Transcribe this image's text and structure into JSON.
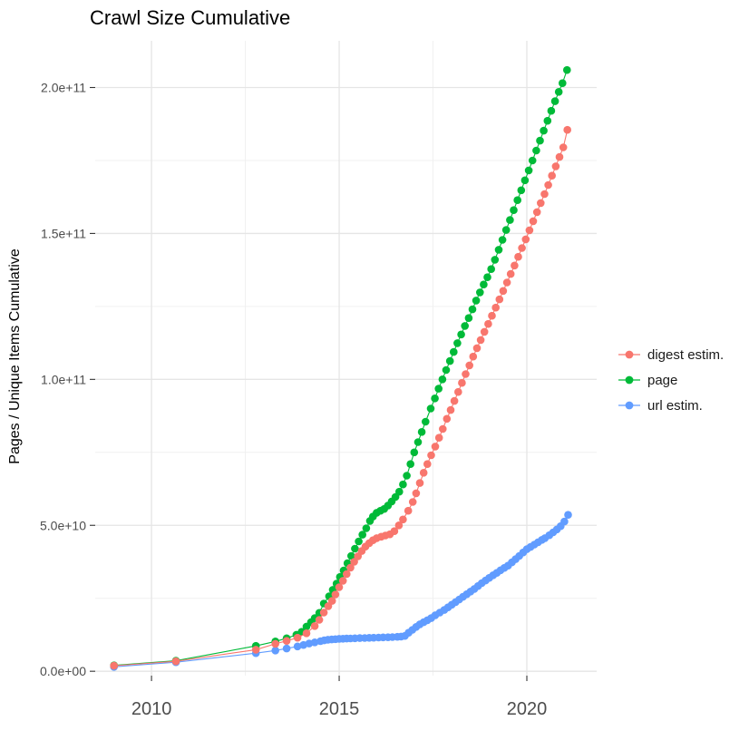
{
  "title": "Crawl Size Cumulative",
  "colors": {
    "background": "#FFFFFF",
    "title_text": "#000000",
    "axis_text": "#4D4D4D",
    "tick_mark": "#333333",
    "grid_major": "#E5E5E5",
    "grid_minor": "#F0F0F0",
    "series_digest": "#F8766D",
    "series_page": "#00BA38",
    "series_url": "#619CFF"
  },
  "chart_data": {
    "type": "scatter",
    "title": "Crawl Size Cumulative",
    "xlabel": "",
    "ylabel": "Pages / Unique Items Cumulative",
    "legend_position": "right",
    "grid": true,
    "x_ticks": [
      2010,
      2015,
      2020
    ],
    "x_tick_labels": [
      "2010",
      "2015",
      "2020"
    ],
    "x_minor_ticks": [
      2012.5,
      2017.5
    ],
    "y_unit": 1000000000,
    "y_ticks_billions": [
      0,
      50,
      100,
      150,
      200
    ],
    "y_tick_labels": [
      "0.0e+00",
      "5.0e+10",
      "1.0e+11",
      "1.5e+11",
      "2.0e+11"
    ],
    "y_minor_ticks_billions": [
      25,
      75,
      125,
      175
    ],
    "xlim": [
      2008.5,
      2021.86
    ],
    "ylim_billions": [
      -1.5,
      216
    ],
    "point_format": "[year, cumulative_value_in_billions]",
    "series": [
      {
        "name": "digest estim.",
        "color": "#F8766D",
        "points": [
          [
            2009.0,
            1.9
          ],
          [
            2010.65,
            3.4
          ],
          [
            2012.78,
            7.4
          ],
          [
            2013.3,
            9.4
          ],
          [
            2013.6,
            10.4
          ],
          [
            2013.89,
            11.5
          ],
          [
            2014.13,
            13.0
          ],
          [
            2014.35,
            15.5
          ],
          [
            2014.47,
            17.6
          ],
          [
            2014.59,
            20.1
          ],
          [
            2014.71,
            22.3
          ],
          [
            2014.81,
            24.1
          ],
          [
            2014.9,
            26.3
          ],
          [
            2015.0,
            28.8
          ],
          [
            2015.1,
            31.0
          ],
          [
            2015.2,
            33.3
          ],
          [
            2015.3,
            35.5
          ],
          [
            2015.4,
            37.5
          ],
          [
            2015.5,
            39.4
          ],
          [
            2015.6,
            41.2
          ],
          [
            2015.7,
            42.7
          ],
          [
            2015.8,
            43.9
          ],
          [
            2015.9,
            44.9
          ],
          [
            2016.0,
            45.6
          ],
          [
            2016.12,
            46.1
          ],
          [
            2016.23,
            46.5
          ],
          [
            2016.35,
            46.9
          ],
          [
            2016.47,
            48.0
          ],
          [
            2016.59,
            50.0
          ],
          [
            2016.7,
            52.0
          ],
          [
            2016.84,
            55.0
          ],
          [
            2016.96,
            58.0
          ],
          [
            2017.05,
            61.0
          ],
          [
            2017.15,
            64.5
          ],
          [
            2017.25,
            68.0
          ],
          [
            2017.35,
            71.0
          ],
          [
            2017.45,
            74.0
          ],
          [
            2017.56,
            77.0
          ],
          [
            2017.66,
            80.0
          ],
          [
            2017.76,
            83.0
          ],
          [
            2017.87,
            86.5
          ],
          [
            2017.97,
            89.5
          ],
          [
            2018.07,
            92.6
          ],
          [
            2018.17,
            95.7
          ],
          [
            2018.27,
            98.8
          ],
          [
            2018.37,
            101.8
          ],
          [
            2018.47,
            104.8
          ],
          [
            2018.57,
            107.8
          ],
          [
            2018.67,
            110.7
          ],
          [
            2018.77,
            113.5
          ],
          [
            2018.87,
            116.3
          ],
          [
            2018.97,
            119.0
          ],
          [
            2019.07,
            121.8
          ],
          [
            2019.17,
            124.6
          ],
          [
            2019.27,
            127.4
          ],
          [
            2019.37,
            130.3
          ],
          [
            2019.47,
            133.2
          ],
          [
            2019.57,
            136.1
          ],
          [
            2019.67,
            139.0
          ],
          [
            2019.77,
            142.0
          ],
          [
            2019.87,
            145.0
          ],
          [
            2019.97,
            148.0
          ],
          [
            2020.07,
            151.1
          ],
          [
            2020.17,
            154.2
          ],
          [
            2020.27,
            157.3
          ],
          [
            2020.37,
            160.4
          ],
          [
            2020.47,
            163.5
          ],
          [
            2020.57,
            166.6
          ],
          [
            2020.67,
            169.8
          ],
          [
            2020.77,
            173.0
          ],
          [
            2020.87,
            176.2
          ],
          [
            2020.97,
            179.5
          ],
          [
            2021.08,
            185.5
          ]
        ]
      },
      {
        "name": "page",
        "color": "#00BA38",
        "points": [
          [
            2009.0,
            2.0
          ],
          [
            2010.65,
            3.6
          ],
          [
            2012.78,
            8.7
          ],
          [
            2013.3,
            10.2
          ],
          [
            2013.6,
            11.3
          ],
          [
            2013.86,
            12.5
          ],
          [
            2014.0,
            13.5
          ],
          [
            2014.13,
            15.3
          ],
          [
            2014.25,
            16.8
          ],
          [
            2014.35,
            18.2
          ],
          [
            2014.47,
            20.0
          ],
          [
            2014.59,
            23.2
          ],
          [
            2014.73,
            25.7
          ],
          [
            2014.83,
            27.9
          ],
          [
            2014.93,
            30.0
          ],
          [
            2015.02,
            32.3
          ],
          [
            2015.12,
            34.5
          ],
          [
            2015.22,
            37.0
          ],
          [
            2015.32,
            39.5
          ],
          [
            2015.42,
            42.0
          ],
          [
            2015.52,
            44.5
          ],
          [
            2015.62,
            46.8
          ],
          [
            2015.72,
            49.0
          ],
          [
            2015.82,
            51.5
          ],
          [
            2015.9,
            53.0
          ],
          [
            2016.0,
            54.3
          ],
          [
            2016.1,
            55.0
          ],
          [
            2016.2,
            55.6
          ],
          [
            2016.3,
            56.8
          ],
          [
            2016.4,
            58.2
          ],
          [
            2016.5,
            59.7
          ],
          [
            2016.6,
            61.5
          ],
          [
            2016.7,
            64.0
          ],
          [
            2016.8,
            67.0
          ],
          [
            2016.9,
            71.0
          ],
          [
            2017.0,
            75.0
          ],
          [
            2017.1,
            78.5
          ],
          [
            2017.2,
            82.0
          ],
          [
            2017.3,
            85.5
          ],
          [
            2017.44,
            90.0
          ],
          [
            2017.55,
            93.5
          ],
          [
            2017.65,
            96.8
          ],
          [
            2017.75,
            100.0
          ],
          [
            2017.85,
            103.2
          ],
          [
            2017.95,
            106.3
          ],
          [
            2018.05,
            109.4
          ],
          [
            2018.15,
            112.4
          ],
          [
            2018.25,
            115.4
          ],
          [
            2018.35,
            118.3
          ],
          [
            2018.45,
            121.0
          ],
          [
            2018.55,
            124.0
          ],
          [
            2018.65,
            127.0
          ],
          [
            2018.75,
            129.8
          ],
          [
            2018.85,
            132.5
          ],
          [
            2018.95,
            135.0
          ],
          [
            2019.05,
            137.8
          ],
          [
            2019.15,
            141.0
          ],
          [
            2019.25,
            144.4
          ],
          [
            2019.35,
            147.8
          ],
          [
            2019.45,
            151.2
          ],
          [
            2019.55,
            154.6
          ],
          [
            2019.65,
            158.0
          ],
          [
            2019.75,
            161.4
          ],
          [
            2019.85,
            164.8
          ],
          [
            2019.95,
            168.2
          ],
          [
            2020.05,
            171.6
          ],
          [
            2020.15,
            175.0
          ],
          [
            2020.25,
            178.4
          ],
          [
            2020.35,
            181.8
          ],
          [
            2020.45,
            185.2
          ],
          [
            2020.55,
            188.6
          ],
          [
            2020.65,
            192.0
          ],
          [
            2020.75,
            195.3
          ],
          [
            2020.85,
            198.5
          ],
          [
            2020.95,
            201.5
          ],
          [
            2021.07,
            206.0
          ]
        ]
      },
      {
        "name": "url estim.",
        "color": "#619CFF",
        "points": [
          [
            2009.0,
            1.5
          ],
          [
            2010.65,
            3.1
          ],
          [
            2012.78,
            6.2
          ],
          [
            2013.3,
            7.1
          ],
          [
            2013.6,
            7.8
          ],
          [
            2013.89,
            8.5
          ],
          [
            2014.05,
            9.0
          ],
          [
            2014.2,
            9.5
          ],
          [
            2014.35,
            9.9
          ],
          [
            2014.5,
            10.3
          ],
          [
            2014.6,
            10.6
          ],
          [
            2014.7,
            10.8
          ],
          [
            2014.8,
            10.9
          ],
          [
            2014.9,
            11.0
          ],
          [
            2015.0,
            11.1
          ],
          [
            2015.1,
            11.15
          ],
          [
            2015.2,
            11.2
          ],
          [
            2015.3,
            11.25
          ],
          [
            2015.42,
            11.3
          ],
          [
            2015.55,
            11.35
          ],
          [
            2015.68,
            11.4
          ],
          [
            2015.8,
            11.45
          ],
          [
            2015.92,
            11.5
          ],
          [
            2016.05,
            11.55
          ],
          [
            2016.17,
            11.6
          ],
          [
            2016.3,
            11.65
          ],
          [
            2016.42,
            11.7
          ],
          [
            2016.55,
            11.8
          ],
          [
            2016.65,
            11.9
          ],
          [
            2016.75,
            12.1
          ],
          [
            2016.85,
            13.2
          ],
          [
            2016.95,
            14.2
          ],
          [
            2017.05,
            15.2
          ],
          [
            2017.15,
            16.1
          ],
          [
            2017.25,
            16.8
          ],
          [
            2017.35,
            17.5
          ],
          [
            2017.45,
            18.2
          ],
          [
            2017.56,
            19.2
          ],
          [
            2017.68,
            20.1
          ],
          [
            2017.8,
            21.0
          ],
          [
            2017.9,
            21.9
          ],
          [
            2018.0,
            22.8
          ],
          [
            2018.1,
            23.7
          ],
          [
            2018.2,
            24.6
          ],
          [
            2018.3,
            25.5
          ],
          [
            2018.4,
            26.4
          ],
          [
            2018.5,
            27.3
          ],
          [
            2018.6,
            28.2
          ],
          [
            2018.7,
            29.2
          ],
          [
            2018.8,
            30.2
          ],
          [
            2018.9,
            31.1
          ],
          [
            2019.0,
            32.0
          ],
          [
            2019.1,
            32.9
          ],
          [
            2019.2,
            33.7
          ],
          [
            2019.3,
            34.6
          ],
          [
            2019.4,
            35.4
          ],
          [
            2019.5,
            36.2
          ],
          [
            2019.6,
            37.3
          ],
          [
            2019.7,
            38.4
          ],
          [
            2019.8,
            39.5
          ],
          [
            2019.9,
            40.7
          ],
          [
            2020.0,
            41.8
          ],
          [
            2020.1,
            42.6
          ],
          [
            2020.2,
            43.4
          ],
          [
            2020.3,
            44.2
          ],
          [
            2020.4,
            45.0
          ],
          [
            2020.48,
            45.6
          ],
          [
            2020.6,
            46.6
          ],
          [
            2020.7,
            47.6
          ],
          [
            2020.8,
            48.6
          ],
          [
            2020.9,
            49.7
          ],
          [
            2021.0,
            51.3
          ],
          [
            2021.1,
            53.6
          ]
        ]
      }
    ]
  }
}
